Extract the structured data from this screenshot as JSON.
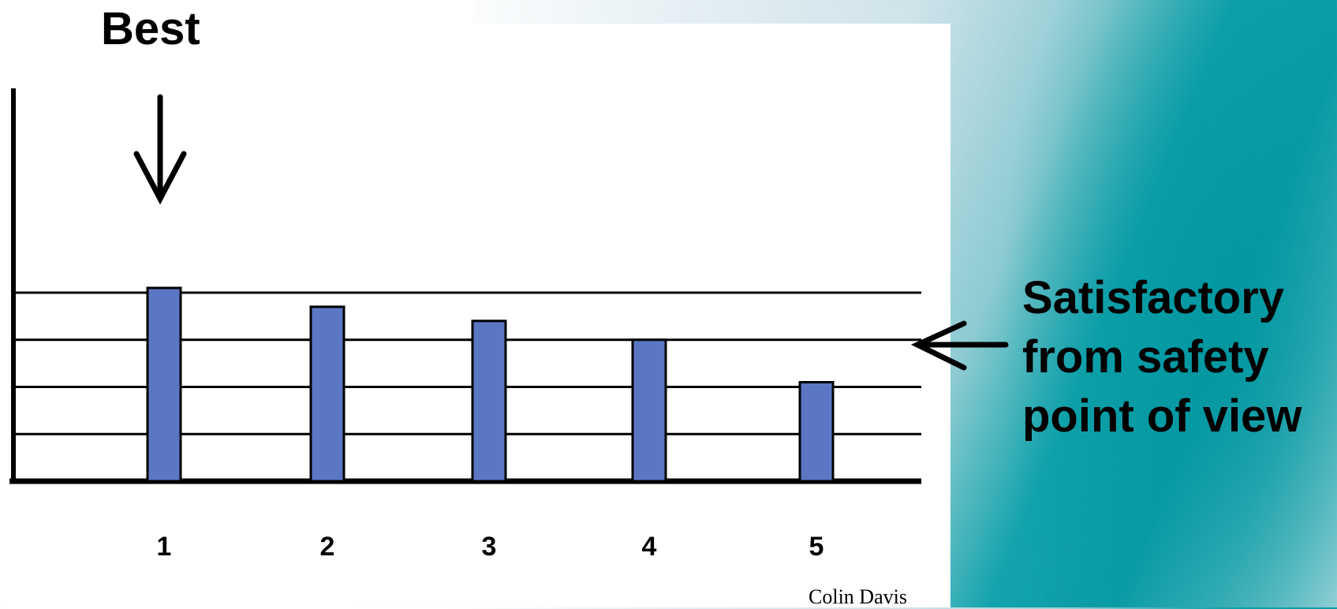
{
  "annotations": {
    "best": "Best",
    "satisfactory": [
      "Satisfactory",
      "from safety",
      "point of view"
    ]
  },
  "credit": "Colin Davis",
  "colors": {
    "bar": "#5b77c4",
    "stroke": "#000000",
    "teal": "#0c9da6"
  },
  "icons": [
    "arrow-down-icon",
    "arrow-left-icon"
  ],
  "chart_data": {
    "type": "bar",
    "categories": [
      "1",
      "2",
      "3",
      "4",
      "5"
    ],
    "values": [
      4.1,
      3.7,
      3.4,
      3.0,
      2.1
    ],
    "ylim": [
      0,
      4.1
    ],
    "gridlines": [
      1,
      2,
      3,
      4
    ],
    "grid": true,
    "best_category": "1",
    "satisfactory_level": 3,
    "title": "",
    "xlabel": "",
    "ylabel": ""
  }
}
